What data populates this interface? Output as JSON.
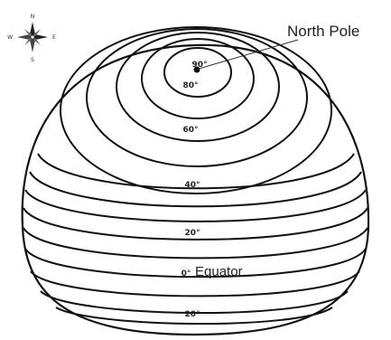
{
  "callout": {
    "north_pole": "North Pole"
  },
  "compass": {
    "n": "N",
    "s": "S",
    "e": "E",
    "w": "W"
  },
  "latitudes": [
    {
      "key": "lat90",
      "label": "90°"
    },
    {
      "key": "lat80",
      "label": "80°"
    },
    {
      "key": "lat60",
      "label": "60°"
    },
    {
      "key": "lat40",
      "label": "40°"
    },
    {
      "key": "lat20n",
      "label": "20°"
    },
    {
      "key": "equator_deg",
      "label": "0°"
    },
    {
      "key": "lat20s",
      "label": "20°"
    }
  ],
  "equator": {
    "label": "Equator"
  }
}
